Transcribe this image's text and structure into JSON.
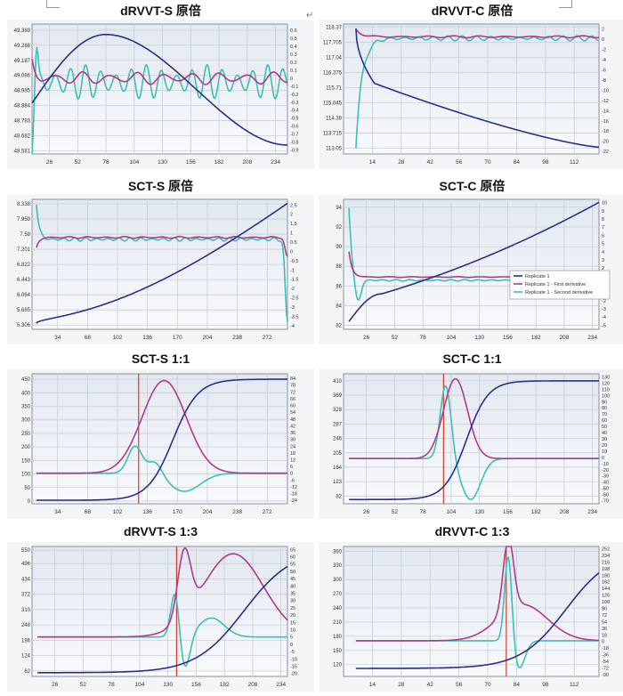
{
  "doc": {
    "return_mark": "↵"
  },
  "colors": {
    "raw": "#2b2f8a",
    "first_derivative": "#b03a8a",
    "second_derivative": "#3cbfb4",
    "marker": "#d83a2a",
    "plot_bg_top": "#e3e8f0",
    "plot_bg_bottom": "#f8fafc",
    "grid": "#c9cfd8"
  },
  "panels": [
    {
      "title": "dRVVT-S 原倍"
    },
    {
      "title": "dRVVT-C 原倍"
    },
    {
      "title": "SCT-S 原倍"
    },
    {
      "title": "SCT-C 原倍"
    },
    {
      "title": "SCT-S 1:1"
    },
    {
      "title": "SCT-C 1:1"
    },
    {
      "title": "dRVVT-S 1:3"
    },
    {
      "title": "dRVVT-C 1:3"
    }
  ],
  "chart_data": [
    {
      "type": "line",
      "title": "dRVVT-S 原倍",
      "x_ticks": [
        "26",
        "52",
        "78",
        "104",
        "130",
        "156",
        "182",
        "208",
        "234"
      ],
      "xlim": [
        10,
        245
      ],
      "y_left_ticks": [
        "48.581",
        "48.682",
        "48.783",
        "48.884",
        "48.985",
        "49.086",
        "49.187",
        "49.288",
        "49.389"
      ],
      "y_left_lim": [
        48.56,
        49.43
      ],
      "y_right_ticks": [
        "-0.9",
        "-0.8",
        "-0.7",
        "-0.6",
        "-0.5",
        "-0.4",
        "-0.3",
        "-0.2",
        "-0.1",
        "0",
        "0.1",
        "0.2",
        "0.3",
        "0.4",
        "0.5",
        "0.6"
      ],
      "y_right_lim": [
        -0.95,
        0.68
      ],
      "series": [
        {
          "role": "raw",
          "axis": "left",
          "shape": "peak",
          "params": {
            "x0": 10,
            "x1": 245,
            "y0": 48.9,
            "peak_x": 78,
            "peak_y": 49.36,
            "y1": 48.62,
            "bump": 0
          }
        },
        {
          "role": "first_derivative",
          "axis": "right",
          "shape": "wavy",
          "params": {
            "x0": 10,
            "x1": 245,
            "base": 0.0,
            "amp": 0.08,
            "freq": 0.25,
            "start": 0.2
          }
        },
        {
          "role": "second_derivative",
          "axis": "right",
          "shape": "wavy",
          "params": {
            "x0": 10,
            "x1": 245,
            "base": -0.05,
            "amp": 0.22,
            "freq": 0.45,
            "start": -0.8,
            "spike": 0.6
          }
        }
      ]
    },
    {
      "type": "line",
      "title": "dRVVT-C 原倍",
      "x_ticks": [
        "14",
        "28",
        "42",
        "56",
        "70",
        "84",
        "98",
        "112"
      ],
      "xlim": [
        0,
        124
      ],
      "y_left_ticks": [
        "113.05",
        "113.715",
        "114.38",
        "115.045",
        "115.71",
        "116.375",
        "117.04",
        "117.705",
        "118.37"
      ],
      "y_left_lim": [
        112.8,
        118.5
      ],
      "y_right_ticks": [
        "-22",
        "-20",
        "-18",
        "-16",
        "-14",
        "-12",
        "-10",
        "-8",
        "-6",
        "-4",
        "-2",
        "0",
        "2"
      ],
      "y_right_lim": [
        -22.5,
        3
      ],
      "series": [
        {
          "role": "raw",
          "axis": "left",
          "shape": "decay",
          "params": {
            "x0": 6,
            "x1": 124,
            "y0": 118.3,
            "y_knee": 115.9,
            "x_knee": 15,
            "y1": 113.1
          }
        },
        {
          "role": "first_derivative",
          "axis": "right",
          "shape": "wavy",
          "params": {
            "x0": 6,
            "x1": 124,
            "base": 0.5,
            "amp": 0.2,
            "freq": 0.5,
            "start": 2
          }
        },
        {
          "role": "second_derivative",
          "axis": "right",
          "shape": "wavy",
          "params": {
            "x0": 6,
            "x1": 124,
            "base": 0.2,
            "amp": 0.5,
            "freq": 0.9,
            "start": -21,
            "spike": 0
          }
        }
      ]
    },
    {
      "type": "line",
      "title": "SCT-S 原倍",
      "x_ticks": [
        "34",
        "68",
        "102",
        "136",
        "170",
        "204",
        "238",
        "272"
      ],
      "xlim": [
        5,
        295
      ],
      "y_left_ticks": [
        "5.306",
        "5.685",
        "6.064",
        "6.443",
        "6.822",
        "7.201",
        "7.58",
        "7.959",
        "8.338"
      ],
      "y_left_lim": [
        5.2,
        8.45
      ],
      "y_right_ticks": [
        "-4",
        "-3.5",
        "-3",
        "-2.5",
        "-2",
        "-1.5",
        "-1",
        "-0.5",
        "0",
        "0.5",
        "1",
        "1.5",
        "2",
        "2.5"
      ],
      "y_right_lim": [
        -4.2,
        2.8
      ],
      "series": [
        {
          "role": "raw",
          "axis": "left",
          "shape": "rise",
          "params": {
            "x0": 10,
            "x1": 295,
            "y0": 5.35,
            "y1": 8.35
          }
        },
        {
          "role": "first_derivative",
          "axis": "right",
          "shape": "wavy",
          "params": {
            "x0": 10,
            "x1": 295,
            "base": 0.75,
            "amp": 0.05,
            "freq": 0.3,
            "start": 0.2,
            "tail": -0.3
          }
        },
        {
          "role": "second_derivative",
          "axis": "right",
          "shape": "wavy",
          "params": {
            "x0": 10,
            "x1": 295,
            "base": 0.65,
            "amp": 0.1,
            "freq": 0.5,
            "start": 2.6,
            "tail": -3.8
          }
        }
      ]
    },
    {
      "type": "line",
      "title": "SCT-C 原倍",
      "x_ticks": [
        "26",
        "52",
        "78",
        "104",
        "130",
        "156",
        "182",
        "208",
        "234"
      ],
      "xlim": [
        5,
        240
      ],
      "y_left_ticks": [
        "82",
        "84",
        "86",
        "88",
        "90",
        "92",
        "94"
      ],
      "y_left_lim": [
        81.6,
        94.8
      ],
      "y_right_ticks": [
        "-5",
        "-4",
        "-3",
        "-2",
        "-1",
        "0",
        "1",
        "2",
        "3",
        "4",
        "5",
        "6",
        "7",
        "8",
        "9",
        "10"
      ],
      "y_right_lim": [
        -5.5,
        10.4
      ],
      "legend": {
        "position": "right",
        "items": [
          "Replicate 1",
          "Replicate 1 - First derivative",
          "Replicate 1 - Second derivative"
        ]
      },
      "series": [
        {
          "role": "raw",
          "axis": "left",
          "shape": "dip_rise",
          "params": {
            "x0": 10,
            "x1": 240,
            "y0": 82.4,
            "y_min": 85.2,
            "x_min": 40,
            "y1": 94.5
          }
        },
        {
          "role": "first_derivative",
          "axis": "right",
          "shape": "wavy",
          "params": {
            "x0": 10,
            "x1": 240,
            "base": 0.9,
            "amp": 0.05,
            "freq": 0.3,
            "start": 4
          }
        },
        {
          "role": "second_derivative",
          "axis": "right",
          "shape": "wavy",
          "params": {
            "x0": 10,
            "x1": 240,
            "base": 0.5,
            "amp": 0.1,
            "freq": 0.5,
            "start": 9.5,
            "dip": -2.5
          }
        }
      ]
    },
    {
      "type": "line",
      "title": "SCT-S 1:1",
      "x_ticks": [
        "34",
        "68",
        "102",
        "136",
        "170",
        "204",
        "238",
        "272"
      ],
      "xlim": [
        5,
        295
      ],
      "y_left_ticks": [
        "0",
        "50",
        "100",
        "150",
        "200",
        "250",
        "300",
        "350",
        "400",
        "450"
      ],
      "y_left_lim": [
        -10,
        470
      ],
      "y_right_ticks": [
        "-24",
        "-18",
        "-12",
        "-6",
        "0",
        "6",
        "12",
        "18",
        "24",
        "30",
        "36",
        "42",
        "48",
        "54",
        "60",
        "66",
        "72",
        "78",
        "84"
      ],
      "y_right_lim": [
        -27,
        88
      ],
      "marker_x": 126,
      "series": [
        {
          "role": "raw",
          "axis": "left",
          "shape": "sigmoid",
          "params": {
            "x0": 10,
            "x1": 295,
            "y0": 3,
            "y1": 450,
            "xc": 165,
            "k": 0.07
          }
        },
        {
          "role": "first_derivative",
          "axis": "right",
          "shape": "bell",
          "params": {
            "x0": 10,
            "x1": 295,
            "base": 0,
            "peak": 82,
            "xc": 155,
            "w": 25
          }
        },
        {
          "role": "second_derivative",
          "axis": "right",
          "shape": "double",
          "params": {
            "x0": 10,
            "x1": 295,
            "base": 0,
            "p1": 24,
            "x1c": 122,
            "w1": 8,
            "p2": 12,
            "x2c": 145,
            "w2": 8,
            "trough": -16,
            "xt": 178,
            "wt": 18
          }
        }
      ]
    },
    {
      "type": "line",
      "title": "SCT-C 1:1",
      "x_ticks": [
        "26",
        "52",
        "78",
        "104",
        "130",
        "156",
        "182",
        "208",
        "234"
      ],
      "xlim": [
        5,
        240
      ],
      "y_left_ticks": [
        "82",
        "123",
        "164",
        "205",
        "246",
        "287",
        "328",
        "369",
        "410"
      ],
      "y_left_lim": [
        60,
        430
      ],
      "y_right_ticks": [
        "-70",
        "-60",
        "-50",
        "-40",
        "-30",
        "-20",
        "-10",
        "0",
        "10",
        "20",
        "30",
        "40",
        "50",
        "60",
        "70",
        "80",
        "90",
        "100",
        "110",
        "120",
        "130"
      ],
      "y_right_lim": [
        -75,
        135
      ],
      "marker_x": 97,
      "series": [
        {
          "role": "raw",
          "axis": "left",
          "shape": "sigmoid",
          "params": {
            "x0": 10,
            "x1": 240,
            "y0": 72,
            "y1": 410,
            "xc": 118,
            "k": 0.1
          }
        },
        {
          "role": "first_derivative",
          "axis": "right",
          "shape": "bell",
          "params": {
            "x0": 10,
            "x1": 240,
            "base": -2,
            "peak": 127,
            "xc": 108,
            "w": 11
          }
        },
        {
          "role": "second_derivative",
          "axis": "right",
          "shape": "double",
          "params": {
            "x0": 10,
            "x1": 240,
            "base": -2,
            "p1": 118,
            "x1c": 99,
            "w1": 5,
            "p2": 0,
            "x2c": 110,
            "w2": 5,
            "trough": -68,
            "xt": 122,
            "wt": 9
          }
        }
      ]
    },
    {
      "type": "line",
      "title": "dRVVT-S 1:3",
      "x_ticks": [
        "26",
        "52",
        "78",
        "104",
        "130",
        "156",
        "182",
        "208",
        "234"
      ],
      "xlim": [
        5,
        240
      ],
      "y_left_ticks": [
        "62",
        "124",
        "186",
        "248",
        "310",
        "372",
        "434",
        "496",
        "550"
      ],
      "y_left_lim": [
        40,
        565
      ],
      "y_right_ticks": [
        "-20",
        "-15",
        "-10",
        "-5",
        "0",
        "5",
        "10",
        "15",
        "20",
        "25",
        "30",
        "35",
        "40",
        "45",
        "50",
        "55",
        "60",
        "65"
      ],
      "y_right_lim": [
        -22,
        67
      ],
      "marker_x": 138,
      "series": [
        {
          "role": "raw",
          "axis": "left",
          "shape": "sigmoid",
          "params": {
            "x0": 10,
            "x1": 240,
            "y0": 55,
            "y1": 555,
            "xc": 200,
            "k": 0.045
          }
        },
        {
          "role": "first_derivative",
          "axis": "right",
          "shape": "hump2",
          "params": {
            "x0": 10,
            "x1": 240,
            "base": 5,
            "p1": 50,
            "x1c": 145,
            "w1": 6,
            "p2": 62,
            "x2c": 190,
            "w2": 28
          }
        },
        {
          "role": "second_derivative",
          "axis": "right",
          "shape": "double",
          "params": {
            "x0": 10,
            "x1": 240,
            "base": 5,
            "p1": 40,
            "x1c": 137,
            "w1": 4,
            "p2": 18,
            "x2c": 170,
            "w2": 12,
            "trough": -20,
            "xt": 145,
            "wt": 5
          }
        }
      ]
    },
    {
      "type": "line",
      "title": "dRVVT-C 1:3",
      "x_ticks": [
        "14",
        "28",
        "42",
        "56",
        "70",
        "84",
        "98",
        "112"
      ],
      "xlim": [
        0,
        124
      ],
      "y_left_ticks": [
        "120",
        "150",
        "180",
        "210",
        "240",
        "270",
        "300",
        "330",
        "360"
      ],
      "y_left_lim": [
        95,
        370
      ],
      "y_right_ticks": [
        "-90",
        "-72",
        "-54",
        "-36",
        "-18",
        "0",
        "18",
        "36",
        "54",
        "72",
        "90",
        "108",
        "126",
        "144",
        "162",
        "180",
        "198",
        "216",
        "234",
        "252"
      ],
      "y_right_lim": [
        -95,
        258
      ],
      "marker_x": 79,
      "series": [
        {
          "role": "raw",
          "axis": "left",
          "shape": "sigmoid",
          "params": {
            "x0": 6,
            "x1": 124,
            "y0": 112,
            "y1": 362,
            "xc": 108,
            "k": 0.09
          }
        },
        {
          "role": "first_derivative",
          "axis": "right",
          "shape": "hump2",
          "params": {
            "x0": 6,
            "x1": 124,
            "base": 2,
            "p1": 200,
            "x1c": 80,
            "w1": 2.5,
            "p2": 100,
            "x2c": 87,
            "w2": 12
          }
        },
        {
          "role": "second_derivative",
          "axis": "right",
          "shape": "double",
          "params": {
            "x0": 6,
            "x1": 124,
            "base": 2,
            "p1": 248,
            "x1c": 80,
            "w1": 1.8,
            "p2": 0,
            "x2c": 90,
            "w2": 6,
            "trough": -75,
            "xt": 85,
            "wt": 3
          }
        }
      ]
    }
  ]
}
